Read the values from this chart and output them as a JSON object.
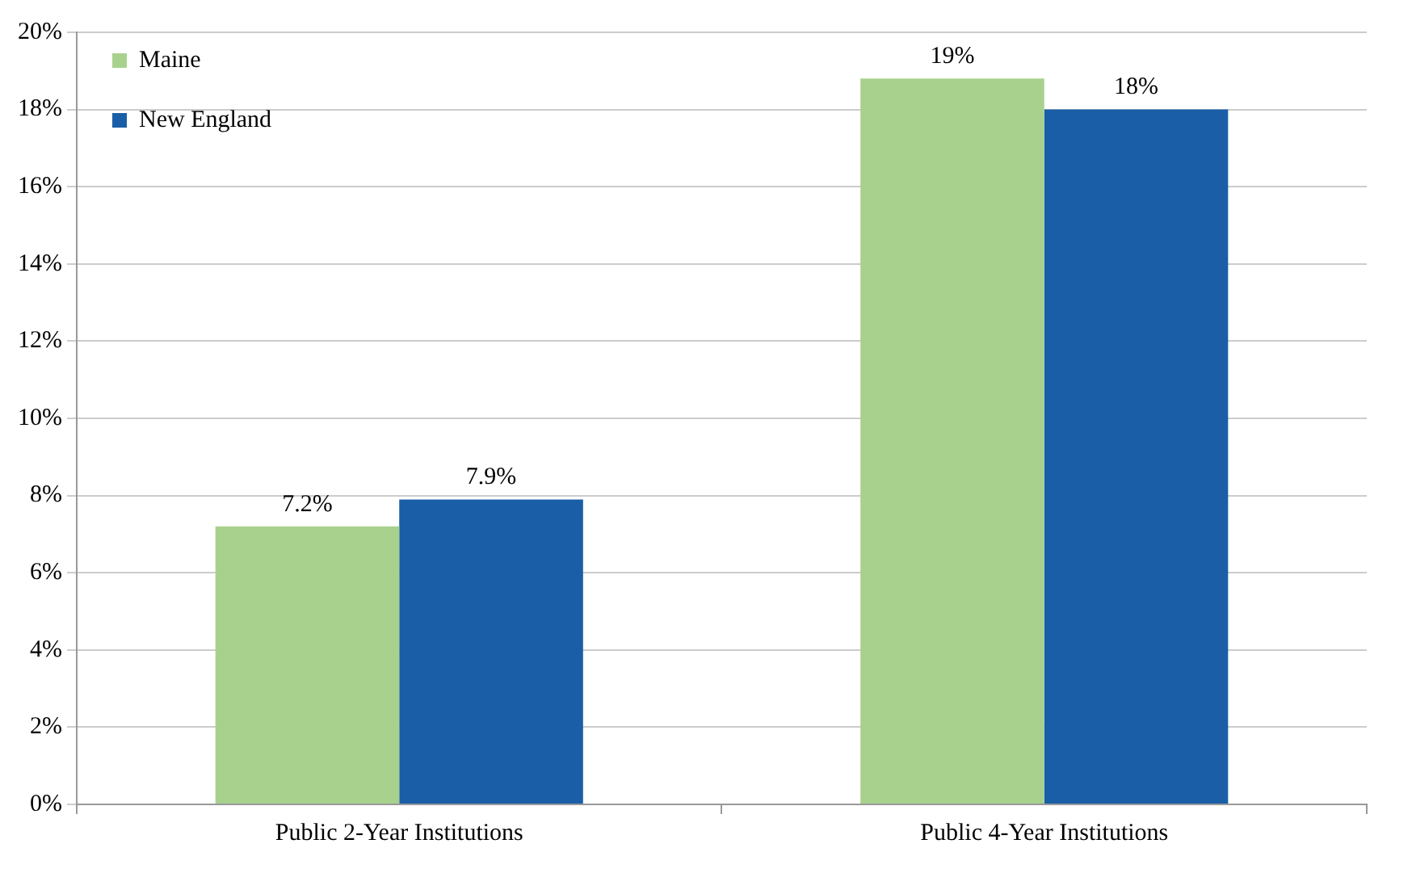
{
  "chart_data": {
    "type": "bar",
    "categories": [
      "Public 2-Year Institutions",
      "Public 4-Year Institutions"
    ],
    "series": [
      {
        "name": "Maine",
        "color": "#a9d18e",
        "values": [
          7.2,
          18.8
        ],
        "value_labels": [
          "7.2%",
          "19%"
        ]
      },
      {
        "name": "New England",
        "color": "#1a5ea8",
        "values": [
          7.9,
          18.0
        ],
        "value_labels": [
          "7.9%",
          "18%"
        ]
      }
    ],
    "ylim": [
      0,
      20
    ],
    "yticks": [
      {
        "value": 0,
        "label": "0%"
      },
      {
        "value": 2,
        "label": "2%"
      },
      {
        "value": 4,
        "label": "4%"
      },
      {
        "value": 6,
        "label": "6%"
      },
      {
        "value": 8,
        "label": "8%"
      },
      {
        "value": 10,
        "label": "10%"
      },
      {
        "value": 12,
        "label": "12%"
      },
      {
        "value": 14,
        "label": "14%"
      },
      {
        "value": 16,
        "label": "16%"
      },
      {
        "value": 18,
        "label": "18%"
      },
      {
        "value": 20,
        "label": "20%"
      }
    ],
    "grid": "y",
    "legend": "top left"
  }
}
